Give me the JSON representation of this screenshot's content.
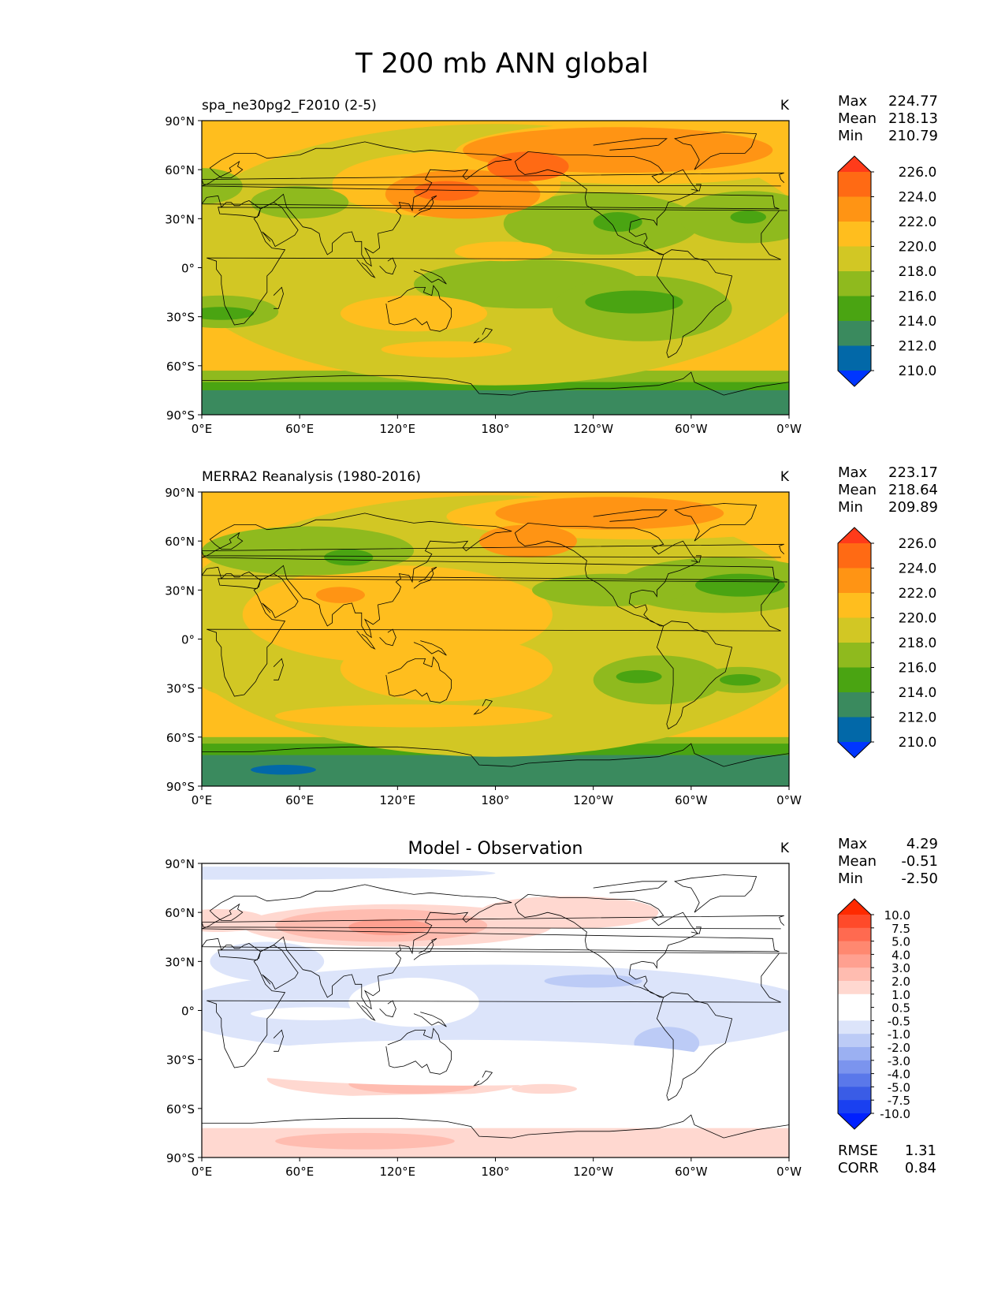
{
  "figure": {
    "title": "T 200 mb ANN global"
  },
  "chart_data": [
    {
      "type": "heatmap",
      "title": "spa_ne30pg2_F2010 (2-5)",
      "units": "K",
      "stats": [
        {
          "label": "Max",
          "value": "224.77"
        },
        {
          "label": "Mean",
          "value": "218.13"
        },
        {
          "label": "Min",
          "value": "210.79"
        }
      ],
      "x_ticks": [
        "0°E",
        "60°E",
        "120°E",
        "180°",
        "120°W",
        "60°W",
        "0°W"
      ],
      "y_ticks": [
        "90°N",
        "60°N",
        "30°N",
        "0°",
        "30°S",
        "60°S",
        "90°S"
      ],
      "xlim": [
        0,
        360
      ],
      "ylim": [
        -90,
        90
      ],
      "colorbar": {
        "ticks": [
          "226.0",
          "224.0",
          "222.0",
          "220.0",
          "218.0",
          "216.0",
          "214.0",
          "212.0",
          "210.0"
        ],
        "colors": [
          "#ff3b1a",
          "#ff6a14",
          "#ff9414",
          "#ffbe1e",
          "#d2c724",
          "#8fba1e",
          "#4aa412",
          "#3a8a5e",
          "#0268a8",
          "#0036ff"
        ]
      },
      "regions": [
        {
          "lon": 180,
          "lat": 8,
          "w": 400,
          "h": 160,
          "level": 218
        },
        {
          "lon": 245,
          "lat": 27,
          "w": 120,
          "h": 38,
          "level": 216
        },
        {
          "lon": 255,
          "lat": 28,
          "w": 30,
          "h": 12,
          "level": 214
        },
        {
          "lon": 335,
          "lat": 31,
          "w": 85,
          "h": 32,
          "level": 216
        },
        {
          "lon": 335,
          "lat": 31,
          "w": 22,
          "h": 8,
          "level": 214
        },
        {
          "lon": 200,
          "lat": -10,
          "w": 140,
          "h": 30,
          "level": 216
        },
        {
          "lon": 270,
          "lat": -25,
          "w": 110,
          "h": 40,
          "level": 216
        },
        {
          "lon": 265,
          "lat": -21,
          "w": 60,
          "h": 14,
          "level": 214
        },
        {
          "lon": 12,
          "lat": -27,
          "w": 70,
          "h": 20,
          "level": 216
        },
        {
          "lon": 12,
          "lat": -28,
          "w": 40,
          "h": 8,
          "level": 214
        },
        {
          "lon": 150,
          "lat": 51,
          "w": 140,
          "h": 40,
          "level": 220
        },
        {
          "lon": 160,
          "lat": 45,
          "w": 95,
          "h": 30,
          "level": 222
        },
        {
          "lon": 150,
          "lat": 47,
          "w": 40,
          "h": 12,
          "level": 224
        },
        {
          "lon": 270,
          "lat": 70,
          "w": 230,
          "h": 38,
          "level": 220
        },
        {
          "lon": 255,
          "lat": 72,
          "w": 190,
          "h": 28,
          "level": 222
        },
        {
          "lon": 200,
          "lat": 62,
          "w": 50,
          "h": 18,
          "level": 224
        },
        {
          "lon": 185,
          "lat": 10,
          "w": 60,
          "h": 12,
          "level": 220
        },
        {
          "lon": 130,
          "lat": -28,
          "w": 90,
          "h": 22,
          "level": 220
        },
        {
          "lon": 150,
          "lat": -50,
          "w": 80,
          "h": 10,
          "level": 220
        },
        {
          "lon": 60,
          "lat": 40,
          "w": 60,
          "h": 20,
          "level": 216
        },
        {
          "lon": 0,
          "lat": 50,
          "w": 50,
          "h": 22,
          "level": 216
        }
      ],
      "polar_bands": [
        {
          "lat_top": -63,
          "level": 216
        },
        {
          "lat_top": -70,
          "level": 214
        },
        {
          "lat_top": -75,
          "level": 212
        }
      ]
    },
    {
      "type": "heatmap",
      "title": "MERRA2 Reanalysis (1980-2016)",
      "units": "K",
      "stats": [
        {
          "label": "Max",
          "value": "223.17"
        },
        {
          "label": "Mean",
          "value": "218.64"
        },
        {
          "label": "Min",
          "value": "209.89"
        }
      ],
      "x_ticks": [
        "0°E",
        "60°E",
        "120°E",
        "180°",
        "120°W",
        "60°W",
        "0°W"
      ],
      "y_ticks": [
        "90°N",
        "60°N",
        "30°N",
        "0°",
        "30°S",
        "60°S",
        "90°S"
      ],
      "xlim": [
        0,
        360
      ],
      "ylim": [
        -90,
        90
      ],
      "colorbar": {
        "ticks": [
          "226.0",
          "224.0",
          "222.0",
          "220.0",
          "218.0",
          "216.0",
          "214.0",
          "212.0",
          "210.0"
        ],
        "colors": [
          "#ff3b1a",
          "#ff6a14",
          "#ff9414",
          "#ffbe1e",
          "#d2c724",
          "#8fba1e",
          "#4aa412",
          "#3a8a5e",
          "#0268a8",
          "#0036ff"
        ]
      },
      "regions": [
        {
          "lon": 180,
          "lat": 8,
          "w": 400,
          "h": 160,
          "level": 218
        },
        {
          "lon": 120,
          "lat": 15,
          "w": 190,
          "h": 60,
          "level": 220
        },
        {
          "lon": 150,
          "lat": -18,
          "w": 130,
          "h": 40,
          "level": 220
        },
        {
          "lon": 85,
          "lat": 27,
          "w": 30,
          "h": 10,
          "level": 222
        },
        {
          "lon": 270,
          "lat": 75,
          "w": 240,
          "h": 28,
          "level": 220
        },
        {
          "lon": 250,
          "lat": 77,
          "w": 140,
          "h": 20,
          "level": 222
        },
        {
          "lon": 200,
          "lat": 60,
          "w": 60,
          "h": 20,
          "level": 222
        },
        {
          "lon": 65,
          "lat": 54,
          "w": 130,
          "h": 30,
          "level": 216
        },
        {
          "lon": 90,
          "lat": 50,
          "w": 30,
          "h": 10,
          "level": 214
        },
        {
          "lon": 320,
          "lat": 33,
          "w": 130,
          "h": 34,
          "level": 216
        },
        {
          "lon": 330,
          "lat": 33,
          "w": 55,
          "h": 14,
          "level": 214
        },
        {
          "lon": 250,
          "lat": 30,
          "w": 95,
          "h": 20,
          "level": 216
        },
        {
          "lon": 280,
          "lat": -25,
          "w": 80,
          "h": 30,
          "level": 216
        },
        {
          "lon": 268,
          "lat": -23,
          "w": 28,
          "h": 8,
          "level": 214
        },
        {
          "lon": 330,
          "lat": -25,
          "w": 50,
          "h": 16,
          "level": 216
        },
        {
          "lon": 330,
          "lat": -25,
          "w": 25,
          "h": 7,
          "level": 214
        },
        {
          "lon": 130,
          "lat": -47,
          "w": 170,
          "h": 14,
          "level": 220
        },
        {
          "lon": 20,
          "lat": -20,
          "w": 50,
          "h": 30,
          "level": 218
        }
      ],
      "polar_bands": [
        {
          "lat_top": -60,
          "level": 216
        },
        {
          "lat_top": -64,
          "level": 214
        },
        {
          "lat_top": -71,
          "level": 212
        }
      ],
      "spots": [
        {
          "lon": 50,
          "lat": -80,
          "w": 40,
          "h": 6,
          "level": 210
        }
      ]
    },
    {
      "type": "heatmap",
      "title": "Model - Observation",
      "units": "K",
      "stats": [
        {
          "label": "Max",
          "value": "4.29"
        },
        {
          "label": "Mean",
          "value": "-0.51"
        },
        {
          "label": "Min",
          "value": "-2.50"
        }
      ],
      "metrics": [
        {
          "label": "RMSE",
          "value": "1.31"
        },
        {
          "label": "CORR",
          "value": "0.84"
        }
      ],
      "x_ticks": [
        "0°E",
        "60°E",
        "120°E",
        "180°",
        "120°W",
        "60°W",
        "0°W"
      ],
      "y_ticks": [
        "90°N",
        "60°N",
        "30°N",
        "0°",
        "30°S",
        "60°S",
        "90°S"
      ],
      "xlim": [
        0,
        360
      ],
      "ylim": [
        -90,
        90
      ],
      "colorbar": {
        "ticks": [
          "10.0",
          "7.5",
          "5.0",
          "4.0",
          "3.0",
          "2.0",
          "1.0",
          "0.5",
          "-0.5",
          "-1.0",
          "-2.0",
          "-3.0",
          "-4.0",
          "-5.0",
          "-7.5",
          "-10.0"
        ],
        "colors": [
          "#ff2a00",
          "#ff4a2a",
          "#ff6a50",
          "#ff8870",
          "#ffa090",
          "#ffbcb0",
          "#ffd8d0",
          "#ffffff",
          "#ffffff",
          "#dce4fa",
          "#bccbf6",
          "#9bb0f2",
          "#7b94ee",
          "#5a78ea",
          "#3a5ce6",
          "#1a40f0",
          "#0020ff"
        ]
      },
      "base_level": "-0.5",
      "regions": [
        {
          "lon": 180,
          "lat": 0,
          "w": 400,
          "h": 56,
          "level": -1.0
        },
        {
          "lon": 40,
          "lat": 30,
          "w": 70,
          "h": 24,
          "level": -1.0
        },
        {
          "lon": 195,
          "lat": 5,
          "w": 200,
          "h": 36,
          "level": -1.0
        },
        {
          "lon": 130,
          "lat": 5,
          "w": 80,
          "h": 30,
          "level": -0.5
        },
        {
          "lon": 70,
          "lat": -2,
          "w": 80,
          "h": 8,
          "level": -0.5
        },
        {
          "lon": 285,
          "lat": -20,
          "w": 40,
          "h": 20,
          "level": -2.0
        },
        {
          "lon": 240,
          "lat": 18,
          "w": 60,
          "h": 8,
          "level": -2.0
        },
        {
          "lon": 0,
          "lat": 84,
          "w": 360,
          "h": 8,
          "level": -1.0
        },
        {
          "lon": 120,
          "lat": 52,
          "w": 190,
          "h": 26,
          "level": 1.0
        },
        {
          "lon": 110,
          "lat": 52,
          "w": 130,
          "h": 20,
          "level": 2.0
        },
        {
          "lon": 115,
          "lat": 51,
          "w": 50,
          "h": 10,
          "level": 3.0
        },
        {
          "lon": 225,
          "lat": 60,
          "w": 110,
          "h": 20,
          "level": 1.0
        },
        {
          "lon": 10,
          "lat": 55,
          "w": 60,
          "h": 14,
          "level": 1.0
        },
        {
          "lon": 0,
          "lat": 75,
          "w": 360,
          "h": 10,
          "level": 0.5
        },
        {
          "lon": 120,
          "lat": -42,
          "w": 160,
          "h": 22,
          "level": 1.0
        },
        {
          "lon": 130,
          "lat": -45,
          "w": 80,
          "h": 12,
          "level": 2.0
        },
        {
          "lon": 160,
          "lat": -32,
          "w": 320,
          "h": 28,
          "level": 0.5
        },
        {
          "lon": 190,
          "lat": -60,
          "w": 380,
          "h": 18,
          "level": 0.5
        },
        {
          "lon": 210,
          "lat": -48,
          "w": 40,
          "h": 6,
          "level": 1.0
        }
      ],
      "polar_bands": [
        {
          "lat_top": -72,
          "level": 1.0
        }
      ],
      "spots": [
        {
          "lon": 100,
          "lat": -80,
          "w": 110,
          "h": 10,
          "level": 2.0
        }
      ]
    }
  ]
}
